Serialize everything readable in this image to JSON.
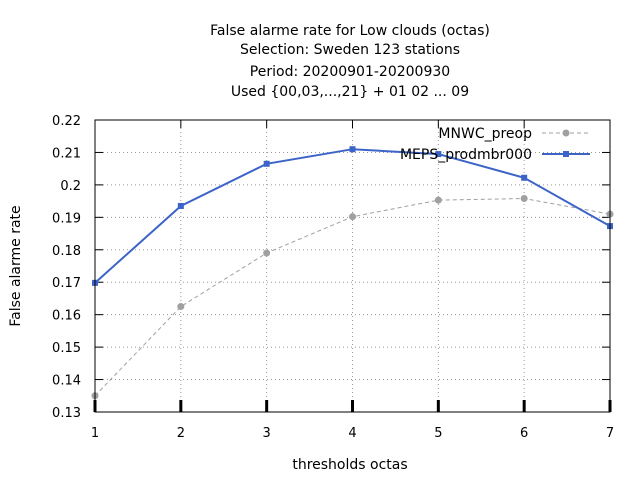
{
  "chart_data": {
    "type": "line",
    "title_lines": [
      "False alarme rate  for Low clouds (octas)",
      "Selection: Sweden    123 stations",
      "Period: 20200901-20200930",
      "Used {00,03,...,21} + 01 02 ... 09"
    ],
    "xlabel": "thresholds octas",
    "ylabel": "False alarme rate",
    "x": [
      1,
      2,
      3,
      4,
      5,
      6,
      7
    ],
    "xlim": [
      1,
      7
    ],
    "ylim": [
      0.13,
      0.22
    ],
    "x_ticks": [
      "1",
      "2",
      "3",
      "4",
      "5",
      "6",
      "7"
    ],
    "y_ticks": [
      "0.13",
      "0.14",
      "0.15",
      "0.16",
      "0.17",
      "0.18",
      "0.19",
      "0.2",
      "0.21",
      "0.22"
    ],
    "grid": true,
    "legend_position": "top-right",
    "series": [
      {
        "name": "MNWC_preop",
        "color": "#a0a0a0",
        "line_style": "dashed",
        "marker": "circle",
        "values": [
          0.135,
          0.1625,
          0.179,
          0.1902,
          0.1953,
          0.1958,
          0.191
        ]
      },
      {
        "name": "MEPS_prodmbr000",
        "color": "#3c64c8",
        "line_style": "solid",
        "marker": "square",
        "values": [
          0.1698,
          0.1935,
          0.2065,
          0.211,
          0.2095,
          0.2022,
          0.1873
        ]
      }
    ]
  }
}
